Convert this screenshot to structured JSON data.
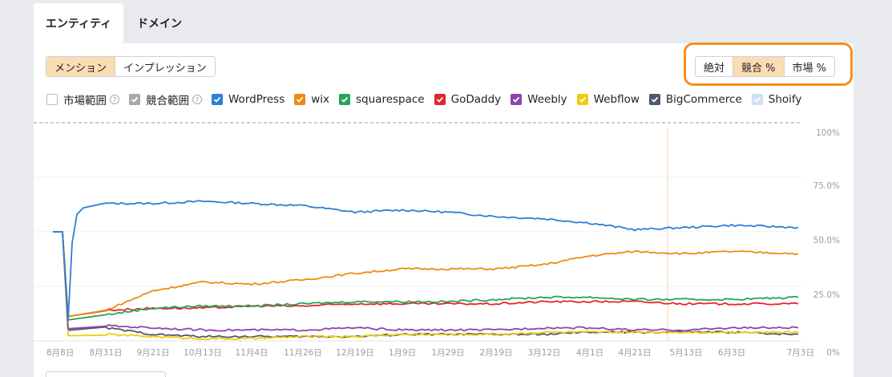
{
  "tabs": [
    {
      "label": "エンティティ",
      "active": true
    },
    {
      "label": "ドメイン",
      "active": false
    }
  ],
  "mode_toggle": [
    {
      "label": "メンション",
      "selected": true
    },
    {
      "label": "インプレッション",
      "selected": false
    }
  ],
  "scale_toggle": [
    {
      "label": "絶対",
      "selected": false
    },
    {
      "label": "競合 %",
      "selected": true
    },
    {
      "label": "市場 %",
      "selected": false
    }
  ],
  "legend": [
    {
      "label": "市場範囲",
      "checked": false,
      "color": "#ffffff",
      "help": true
    },
    {
      "label": "競合範囲",
      "checked": true,
      "color": "#a8a8a8",
      "help": true
    },
    {
      "label": "WordPress",
      "checked": true,
      "color": "#2f7fd3"
    },
    {
      "label": "wix",
      "checked": true,
      "color": "#f08a10"
    },
    {
      "label": "squarespace",
      "checked": true,
      "color": "#27a35a"
    },
    {
      "label": "GoDaddy",
      "checked": true,
      "color": "#e3262d"
    },
    {
      "label": "Weebly",
      "checked": true,
      "color": "#8e44ad"
    },
    {
      "label": "Webflow",
      "checked": true,
      "color": "#f2cc0c"
    },
    {
      "label": "BigCommerce",
      "checked": true,
      "color": "#4e5a6b"
    },
    {
      "label": "Shoify",
      "checked": true,
      "color": "#cfe0f2"
    }
  ],
  "chart_data": {
    "type": "line",
    "x": [
      "8月8日",
      "8月31日",
      "9月21日",
      "10月13日",
      "11月4日",
      "11月26日",
      "12月19日",
      "1月9日",
      "1月29日",
      "2月19日",
      "3月12日",
      "4月1日",
      "4月21日",
      "5月13日",
      "6月3日",
      "7月3日"
    ],
    "yticks": [
      "100%",
      "75.0%",
      "50.0%",
      "25.0%",
      "0%"
    ],
    "ylim": [
      0,
      100
    ],
    "series": [
      {
        "name": "WordPress",
        "color": "#2f7fd3",
        "values": [
          50,
          63,
          63,
          64,
          63,
          62,
          59,
          60,
          59,
          57,
          56,
          54,
          51,
          52,
          53,
          52
        ]
      },
      {
        "name": "wix",
        "color": "#f08a10",
        "values": [
          50,
          14,
          23,
          27,
          26,
          28,
          31,
          33,
          33,
          33,
          35,
          39,
          41,
          40,
          41,
          40
        ]
      },
      {
        "name": "squarespace",
        "color": "#27a35a",
        "values": [
          50,
          12,
          15,
          16,
          16,
          17,
          18,
          18,
          18,
          19,
          20,
          20,
          19,
          19,
          19,
          20
        ]
      },
      {
        "name": "GoDaddy",
        "color": "#e3262d",
        "values": [
          50,
          14,
          15,
          15,
          16,
          16,
          17,
          17,
          17,
          17,
          18,
          18,
          18,
          17,
          17,
          17
        ]
      },
      {
        "name": "Weebly",
        "color": "#8e44ad",
        "values": [
          50,
          7,
          6,
          5,
          5,
          5,
          6,
          5,
          5,
          5,
          6,
          6,
          5,
          5,
          6,
          6
        ]
      },
      {
        "name": "Webflow",
        "color": "#f2cc0c",
        "values": [
          50,
          3,
          2,
          1,
          1,
          2,
          2,
          3,
          3,
          3,
          4,
          4,
          4,
          4,
          4,
          4
        ]
      },
      {
        "name": "BigCommerce",
        "color": "#4e5a6b",
        "values": [
          50,
          6,
          3,
          2,
          2,
          2,
          2,
          3,
          3,
          3,
          3,
          4,
          4,
          4,
          4,
          3
        ]
      }
    ],
    "reference_line": {
      "label": "",
      "value": 100
    },
    "marker_x": "5月13日"
  }
}
